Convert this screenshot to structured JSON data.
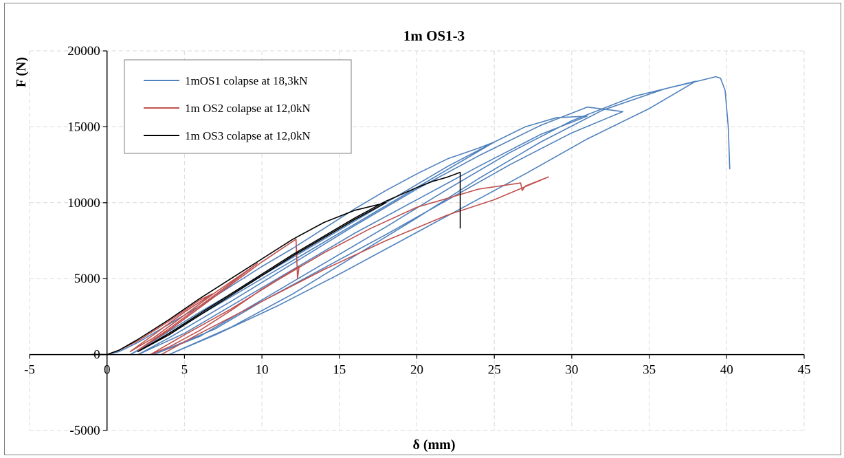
{
  "chart_data": {
    "type": "line",
    "title": "1m OS1-3",
    "xlabel": "δ (mm)",
    "ylabel": "F (N)",
    "xlim": [
      -5,
      45
    ],
    "ylim": [
      -5000,
      20000
    ],
    "x_ticks": [
      -5,
      0,
      5,
      10,
      15,
      20,
      25,
      30,
      35,
      40,
      45
    ],
    "y_ticks": [
      -5000,
      0,
      5000,
      10000,
      15000,
      20000
    ],
    "x_tick_labels": [
      "-5",
      "0",
      "5",
      "10",
      "15",
      "20",
      "25",
      "30",
      "35",
      "40",
      "45"
    ],
    "y_tick_labels": [
      "-5000",
      "0",
      "5000",
      "10000",
      "15000",
      "20000"
    ],
    "grid": true,
    "legend_position": "top-left",
    "series": [
      {
        "name": "1mOS1 colapse at 18,3kN",
        "color": "#4f81bd",
        "points": [
          [
            -1,
            0
          ],
          [
            0,
            0
          ],
          [
            0.8,
            200
          ],
          [
            2,
            800
          ],
          [
            4,
            2000
          ],
          [
            6,
            3200
          ],
          [
            8,
            4500
          ],
          [
            10,
            5800
          ],
          [
            12,
            7000
          ],
          [
            14,
            8300
          ],
          [
            16,
            9600
          ],
          [
            18,
            10800
          ],
          [
            20,
            11900
          ],
          [
            22,
            12900
          ],
          [
            24,
            13600
          ],
          [
            25,
            14000
          ],
          [
            21,
            11600
          ],
          [
            17,
            9200
          ],
          [
            13,
            6800
          ],
          [
            9,
            4400
          ],
          [
            6,
            2600
          ],
          [
            3,
            800
          ],
          [
            1.5,
            0
          ],
          [
            3,
            900
          ],
          [
            6,
            2800
          ],
          [
            10,
            5200
          ],
          [
            14,
            7600
          ],
          [
            18,
            10000
          ],
          [
            22,
            12400
          ],
          [
            25,
            14000
          ],
          [
            27,
            15000
          ],
          [
            29,
            15600
          ],
          [
            31,
            15700
          ],
          [
            28,
            14500
          ],
          [
            24,
            12400
          ],
          [
            20,
            10200
          ],
          [
            16,
            8000
          ],
          [
            12,
            5600
          ],
          [
            8,
            3200
          ],
          [
            5,
            1400
          ],
          [
            2,
            0
          ],
          [
            4,
            1100
          ],
          [
            8,
            3500
          ],
          [
            12,
            6000
          ],
          [
            16,
            8500
          ],
          [
            20,
            10900
          ],
          [
            24,
            13100
          ],
          [
            28,
            15100
          ],
          [
            31,
            16300
          ],
          [
            33.3,
            16000
          ],
          [
            30,
            14600
          ],
          [
            26,
            12500
          ],
          [
            22,
            10200
          ],
          [
            18,
            7900
          ],
          [
            14,
            5700
          ],
          [
            10,
            3500
          ],
          [
            7,
            1700
          ],
          [
            3,
            0
          ],
          [
            6,
            1200
          ],
          [
            10,
            3600
          ],
          [
            14,
            6000
          ],
          [
            18,
            8400
          ],
          [
            22,
            10900
          ],
          [
            26,
            13300
          ],
          [
            30,
            15400
          ],
          [
            34,
            17000
          ],
          [
            38,
            18000
          ],
          [
            35,
            16200
          ],
          [
            31,
            14200
          ],
          [
            27,
            11900
          ],
          [
            23,
            9700
          ],
          [
            19,
            7500
          ],
          [
            15,
            5300
          ],
          [
            11,
            3200
          ],
          [
            7,
            1300
          ],
          [
            4,
            0
          ],
          [
            8,
            1800
          ],
          [
            12,
            4000
          ],
          [
            16,
            6500
          ],
          [
            20,
            9000
          ],
          [
            24,
            11600
          ],
          [
            28,
            14000
          ],
          [
            32,
            16100
          ],
          [
            36,
            17500
          ],
          [
            38.5,
            18100
          ],
          [
            39.3,
            18300
          ],
          [
            39.6,
            18200
          ],
          [
            39.9,
            17400
          ],
          [
            40.1,
            15000
          ],
          [
            40.2,
            12200
          ]
        ]
      },
      {
        "name": "1m OS2 colapse at 12,0kN",
        "color": "#c0504d",
        "points": [
          [
            -1,
            0
          ],
          [
            0,
            0
          ],
          [
            0.8,
            300
          ],
          [
            2,
            900
          ],
          [
            4,
            2200
          ],
          [
            6,
            3600
          ],
          [
            6.8,
            4000
          ],
          [
            5,
            2800
          ],
          [
            3,
            1300
          ],
          [
            1.5,
            200
          ],
          [
            3,
            1100
          ],
          [
            5,
            2600
          ],
          [
            7,
            4100
          ],
          [
            9,
            5500
          ],
          [
            9.7,
            6000
          ],
          [
            8,
            4700
          ],
          [
            6,
            3200
          ],
          [
            4,
            1700
          ],
          [
            2,
            300
          ],
          [
            4,
            1600
          ],
          [
            6,
            3100
          ],
          [
            8,
            4600
          ],
          [
            10,
            6100
          ],
          [
            12.2,
            7600
          ],
          [
            12.3,
            5000
          ],
          [
            12.4,
            5800
          ],
          [
            10,
            4300
          ],
          [
            8,
            2900
          ],
          [
            6,
            1600
          ],
          [
            4,
            500
          ],
          [
            2.8,
            0
          ],
          [
            5,
            1300
          ],
          [
            8,
            3000
          ],
          [
            11,
            4900
          ],
          [
            14,
            6700
          ],
          [
            17,
            8300
          ],
          [
            20,
            9700
          ],
          [
            22,
            10300
          ],
          [
            24,
            10900
          ],
          [
            26.7,
            11300
          ],
          [
            26.8,
            10800
          ],
          [
            27,
            11100
          ],
          [
            28.5,
            11700
          ],
          [
            25,
            10200
          ],
          [
            22,
            9200
          ],
          [
            18,
            7500
          ],
          [
            14,
            5600
          ],
          [
            10,
            3500
          ],
          [
            6,
            1400
          ],
          [
            3.5,
            0
          ]
        ]
      },
      {
        "name": "1m OS3 colapse at 12,0kN",
        "color": "#000000",
        "points": [
          [
            -1,
            0
          ],
          [
            0,
            0
          ],
          [
            0.8,
            300
          ],
          [
            2,
            1000
          ],
          [
            4,
            2300
          ],
          [
            6,
            3700
          ],
          [
            8,
            5000
          ],
          [
            10,
            6300
          ],
          [
            12,
            7600
          ],
          [
            14,
            8700
          ],
          [
            16,
            9500
          ],
          [
            18,
            10000
          ],
          [
            16,
            8900
          ],
          [
            14,
            7700
          ],
          [
            12,
            6500
          ],
          [
            10,
            5200
          ],
          [
            8,
            3900
          ],
          [
            6,
            2600
          ],
          [
            4,
            1300
          ],
          [
            2,
            200
          ],
          [
            4,
            1400
          ],
          [
            6,
            2700
          ],
          [
            8,
            4000
          ],
          [
            10,
            5300
          ],
          [
            12,
            6600
          ],
          [
            14,
            7800
          ],
          [
            16,
            9000
          ],
          [
            18,
            10100
          ],
          [
            20,
            11000
          ],
          [
            21,
            11400
          ],
          [
            22,
            11700
          ],
          [
            22.8,
            12000
          ],
          [
            22.8,
            8300
          ]
        ]
      }
    ]
  }
}
